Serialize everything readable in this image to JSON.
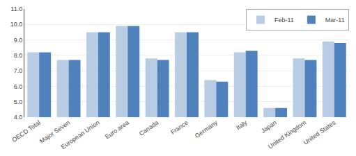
{
  "chart_data": {
    "type": "bar",
    "categories": [
      "OECD Total",
      "Major Seven",
      "European Union",
      "Euro area",
      "Canada",
      "France",
      "Germany",
      "Italy",
      "Japan",
      "United Kingdom",
      "United States"
    ],
    "series": [
      {
        "name": "Feb-11",
        "color": "#b8cce4",
        "values": [
          8.2,
          7.7,
          9.5,
          9.9,
          7.8,
          9.5,
          6.4,
          8.2,
          4.6,
          7.8,
          8.9
        ]
      },
      {
        "name": "Mar-11",
        "color": "#4f81bd",
        "values": [
          8.2,
          7.7,
          9.5,
          9.9,
          7.7,
          9.5,
          6.3,
          8.3,
          4.6,
          7.7,
          8.8
        ]
      }
    ],
    "ylim": [
      4.0,
      11.0
    ],
    "yticks": [
      {
        "value": 4,
        "label": "4.0"
      },
      {
        "value": 5,
        "label": "5.0"
      },
      {
        "value": 6,
        "label": "6.0"
      },
      {
        "value": 7,
        "label": "7.0"
      },
      {
        "value": 8,
        "label": "8.0"
      },
      {
        "value": 9,
        "label": "9.0"
      },
      {
        "value": 10,
        "label": "10.0"
      },
      {
        "value": 11,
        "label": "11.0"
      }
    ],
    "grid": true,
    "legend": "upper right"
  }
}
